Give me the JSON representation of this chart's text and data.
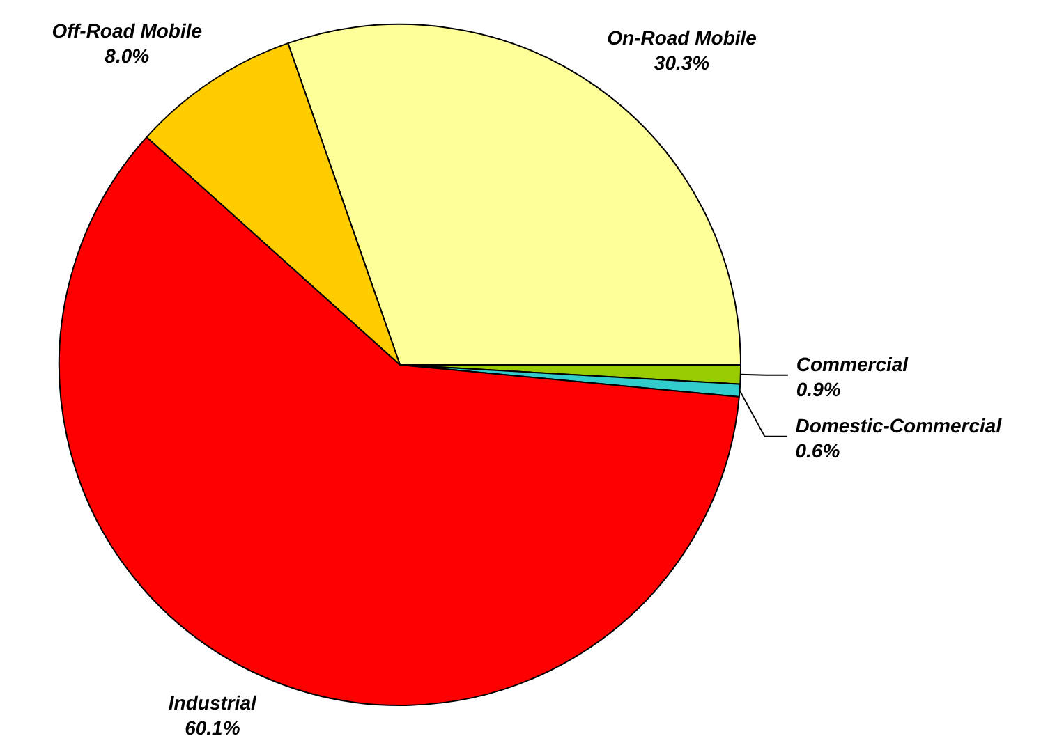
{
  "chart_data": {
    "type": "pie",
    "categories": [
      "On-Road Mobile",
      "Commercial",
      "Domestic-Commercial",
      "Industrial",
      "Off-Road Mobile"
    ],
    "values": [
      30.3,
      0.9,
      0.6,
      60.1,
      8.0
    ],
    "colors": [
      "#ffff99",
      "#99cc00",
      "#33cccc",
      "#ff0000",
      "#ffcc00"
    ],
    "value_labels": [
      "30.3%",
      "0.9%",
      "0.6%",
      "60.1%",
      "8.0%"
    ],
    "legend": false
  }
}
